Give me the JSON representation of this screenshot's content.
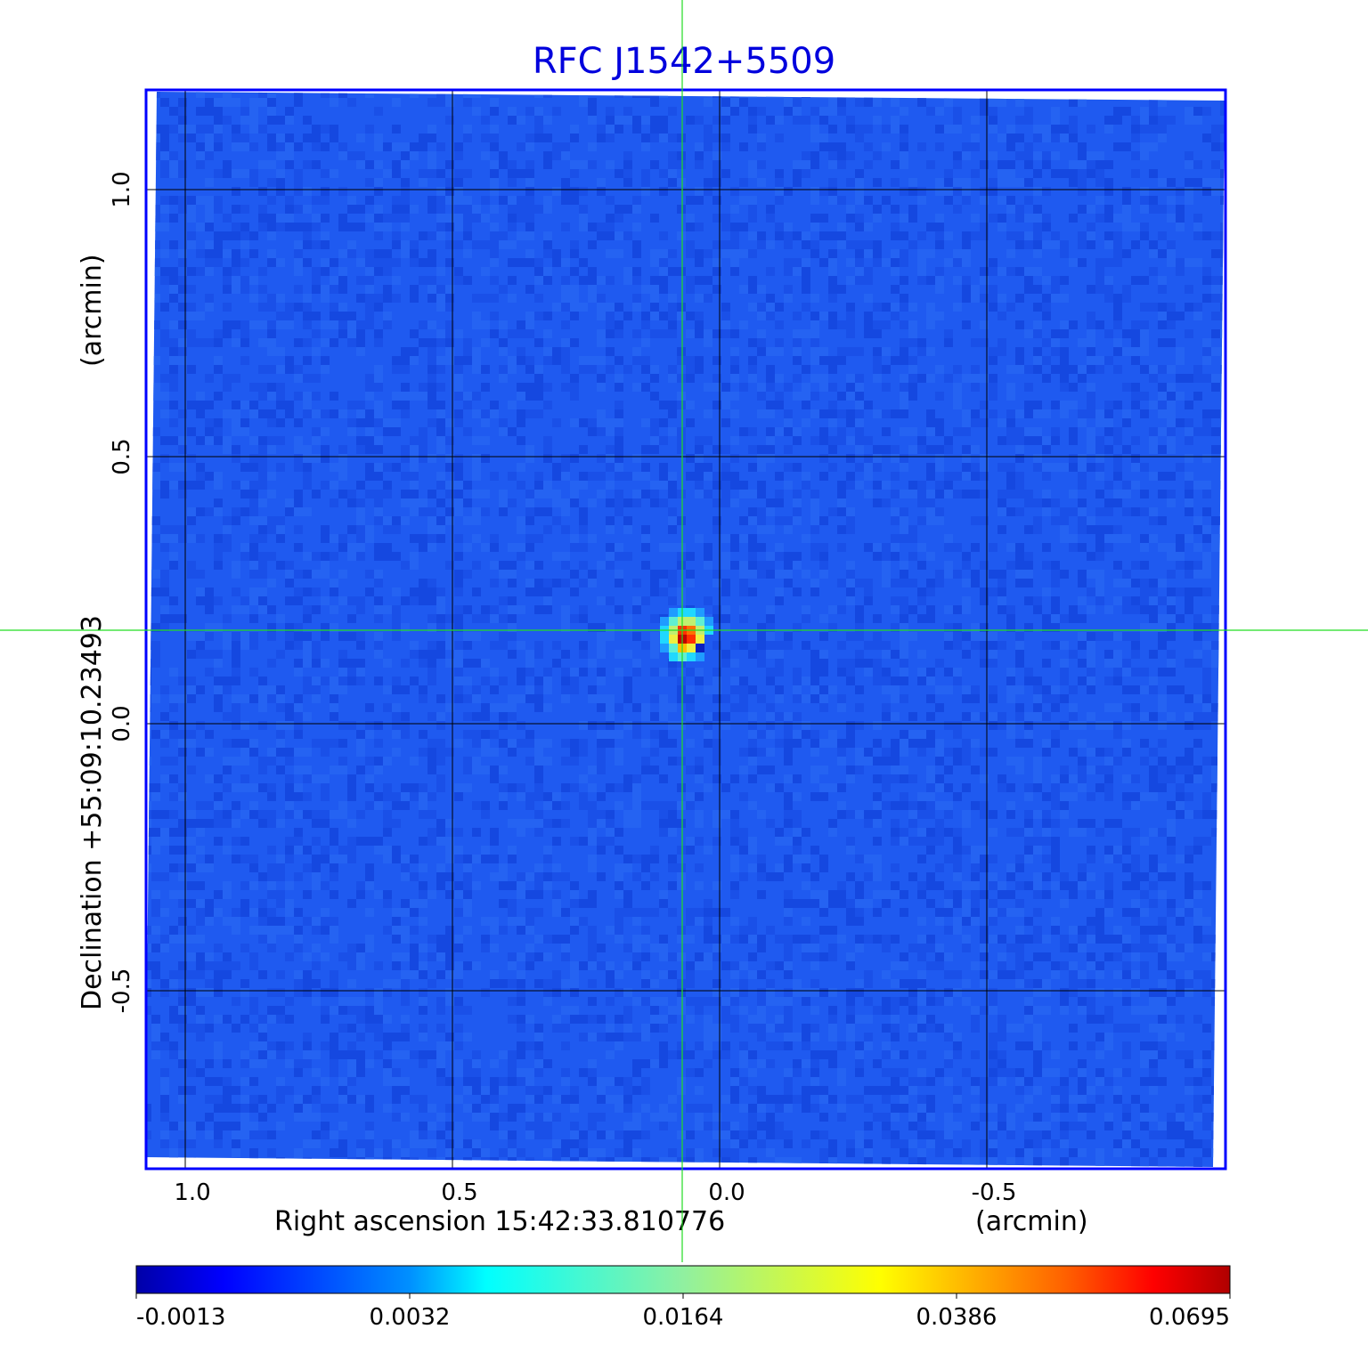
{
  "chart_data": {
    "type": "heatmap",
    "title": "RFC J1542+5509",
    "xlabel": "Right ascension  15:42:33.810776",
    "xunit": "(arcmin)",
    "ylabel": "Declination  +55:09:10.23493",
    "yunit": "(arcmin)",
    "x_ticks": [
      1.0,
      0.5,
      0.0,
      -0.5
    ],
    "x_tick_labels": [
      "1.0",
      "0.5",
      "0.0",
      "-0.5"
    ],
    "y_ticks": [
      1.0,
      0.5,
      0.0,
      -0.5
    ],
    "y_tick_labels": [
      "1.0",
      "0.5",
      "0.0",
      "-0.5"
    ],
    "xlim": [
      1.07,
      -0.95
    ],
    "ylim": [
      -0.84,
      1.19
    ],
    "grid": true,
    "crosshair": {
      "x": 0.07,
      "y": 0.175,
      "color": "#00ff00"
    },
    "peak_position": {
      "x": 0.07,
      "y": 0.175
    },
    "colormap": "jet",
    "colorbar": {
      "placement": "bottom",
      "tick_labels": [
        "-0.0013",
        "0.0032",
        "0.0164",
        "0.0386",
        "0.0695"
      ],
      "min": -0.0013,
      "max": 0.0695
    },
    "colors": {
      "title": "#0000dd",
      "frame": "#0000ff",
      "background_field": "#1f5af0",
      "grid": "#000000"
    }
  }
}
